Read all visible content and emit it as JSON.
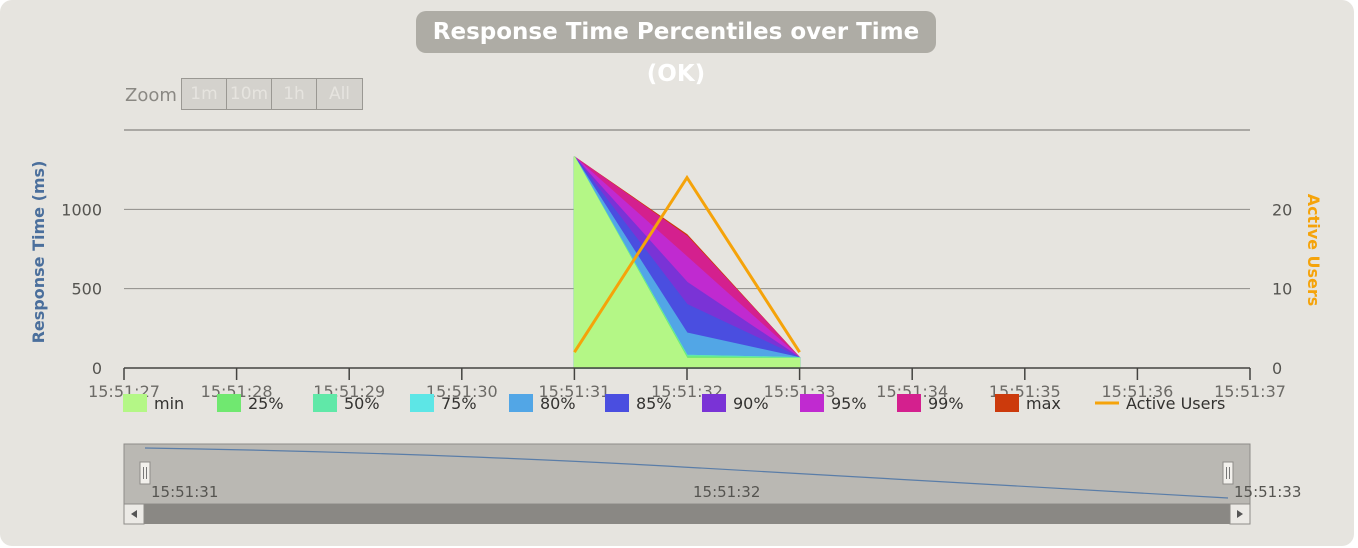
{
  "chart_data": {
    "type": "area",
    "title": "Response Time Percentiles over Time (OK)",
    "ylabel": "Response Time (ms)",
    "y2label": "Active Users",
    "ylim": [
      0,
      1500
    ],
    "y2lim": [
      0,
      30
    ],
    "yticks": [
      0,
      500,
      1000
    ],
    "y2ticks": [
      0,
      10,
      20
    ],
    "x_ticks": [
      "15:51:27",
      "15:51:28",
      "15:51:29",
      "15:51:30",
      "15:51:31",
      "15:51:32",
      "15:51:33",
      "15:51:34",
      "15:51:35",
      "15:51:36",
      "15:51:37"
    ],
    "x": [
      "15:51:31",
      "15:51:32",
      "15:51:33"
    ],
    "series": [
      {
        "name": "max",
        "color": "#cc3a0c",
        "values": [
          1330,
          840,
          65
        ]
      },
      {
        "name": "99%",
        "color": "#d4208e",
        "values": [
          1330,
          830,
          65
        ]
      },
      {
        "name": "95%",
        "color": "#c02ad0",
        "values": [
          1330,
          700,
          65
        ]
      },
      {
        "name": "90%",
        "color": "#7a33d6",
        "values": [
          1330,
          540,
          65
        ]
      },
      {
        "name": "85%",
        "color": "#4a4ee0",
        "values": [
          1330,
          400,
          65
        ]
      },
      {
        "name": "80%",
        "color": "#52a6e6",
        "values": [
          1330,
          220,
          65
        ]
      },
      {
        "name": "75%",
        "color": "#5de6e6",
        "values": [
          1330,
          80,
          65
        ]
      },
      {
        "name": "50%",
        "color": "#60e8a8",
        "values": [
          1330,
          80,
          65
        ]
      },
      {
        "name": "25%",
        "color": "#70e870",
        "values": [
          1330,
          70,
          60
        ]
      },
      {
        "name": "min",
        "color": "#b4f786",
        "values": [
          1330,
          60,
          60
        ]
      }
    ],
    "active_users": {
      "name": "Active Users",
      "color": "#f5a30a",
      "values": [
        2,
        24,
        2
      ]
    },
    "legend": [
      "min",
      "25%",
      "50%",
      "75%",
      "80%",
      "85%",
      "90%",
      "95%",
      "99%",
      "max",
      "Active Users"
    ],
    "navigator": {
      "x_labels": [
        "15:51:31",
        "15:51:32",
        "15:51:33"
      ]
    },
    "legend_position": "bottom",
    "grid": true
  },
  "zoom": {
    "label": "Zoom",
    "buttons": [
      "1m",
      "10m",
      "1h",
      "All"
    ]
  }
}
